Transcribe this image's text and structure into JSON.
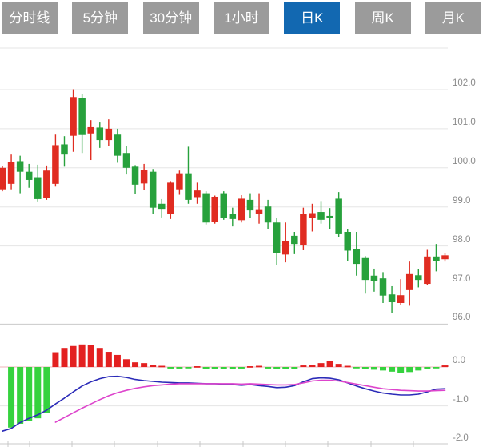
{
  "tab_bar": {
    "tabs": [
      {
        "id": "tab-time-share",
        "label": "分时线",
        "active": false
      },
      {
        "id": "tab-5min",
        "label": "5分钟",
        "active": false
      },
      {
        "id": "tab-30min",
        "label": "30分钟",
        "active": false
      },
      {
        "id": "tab-1hour",
        "label": "1小时",
        "active": false
      },
      {
        "id": "tab-daily-k",
        "label": "日K",
        "active": true
      },
      {
        "id": "tab-weekly-k",
        "label": "周K",
        "active": false
      },
      {
        "id": "tab-monthly-k",
        "label": "月K",
        "active": false
      }
    ],
    "active_bg": "#1268b1",
    "inactive_bg": "#9b9b9b",
    "text_color": "#ffffff"
  },
  "price_axis": {
    "labels": [
      "102.0",
      "101.0",
      "100.0",
      "99.0",
      "98.0",
      "97.0",
      "96.0"
    ],
    "values": [
      102,
      101,
      100,
      99,
      98,
      97,
      96
    ]
  },
  "macd_axis": {
    "labels": [
      "0.0",
      "-1.0",
      "-2.0"
    ],
    "values": [
      0,
      -1,
      -2
    ]
  },
  "chart_data": {
    "type": "candlestick",
    "title": "Daily K-line with MACD sub-chart",
    "selected_period": "日K",
    "panels": [
      "price-kline",
      "macd-histogram"
    ],
    "price_axis_range": [
      95.9,
      103.0
    ],
    "macd_axis_range": [
      -2.05,
      0.65
    ],
    "grid": true,
    "legend": "none",
    "candles_ohlc": [
      [
        99.45,
        100.05,
        99.4,
        100.0
      ],
      [
        99.59,
        100.34,
        99.45,
        100.15
      ],
      [
        100.17,
        100.31,
        99.35,
        99.9
      ],
      [
        99.9,
        100.1,
        99.49,
        99.69
      ],
      [
        99.76,
        100.08,
        99.14,
        99.2
      ],
      [
        99.22,
        100.06,
        99.18,
        99.93
      ],
      [
        99.59,
        100.85,
        99.52,
        100.58
      ],
      [
        100.6,
        100.81,
        100.03,
        100.34
      ],
      [
        100.82,
        102.01,
        100.41,
        101.81
      ],
      [
        101.78,
        101.88,
        100.38,
        100.84
      ],
      [
        100.88,
        101.22,
        100.2,
        101.04
      ],
      [
        101.03,
        101.16,
        100.51,
        100.71
      ],
      [
        100.71,
        101.24,
        100.55,
        101.0
      ],
      [
        100.85,
        101.0,
        100.13,
        100.31
      ],
      [
        100.38,
        100.56,
        99.83,
        100.0
      ],
      [
        100.03,
        100.07,
        99.33,
        99.57
      ],
      [
        99.6,
        100.1,
        99.44,
        99.94
      ],
      [
        99.9,
        99.97,
        98.81,
        98.98
      ],
      [
        99.08,
        99.2,
        98.73,
        98.95
      ],
      [
        98.81,
        99.66,
        98.69,
        99.62
      ],
      [
        99.45,
        99.93,
        99.31,
        99.86
      ],
      [
        99.86,
        100.54,
        99.08,
        99.18
      ],
      [
        99.25,
        99.62,
        99.08,
        99.42
      ],
      [
        99.35,
        99.4,
        98.55,
        98.6
      ],
      [
        98.61,
        99.29,
        98.57,
        99.26
      ],
      [
        99.35,
        99.4,
        98.67,
        98.71
      ],
      [
        98.81,
        98.98,
        98.5,
        98.69
      ],
      [
        98.66,
        99.3,
        98.6,
        99.21
      ],
      [
        99.18,
        99.35,
        98.71,
        98.91
      ],
      [
        98.83,
        99.35,
        98.57,
        98.94
      ],
      [
        99.01,
        99.18,
        98.43,
        98.6
      ],
      [
        98.6,
        98.71,
        97.51,
        97.82
      ],
      [
        97.78,
        98.6,
        97.58,
        98.12
      ],
      [
        98.26,
        98.36,
        97.79,
        98.05
      ],
      [
        98.02,
        98.98,
        97.89,
        98.81
      ],
      [
        98.71,
        99.08,
        98.37,
        98.84
      ],
      [
        98.87,
        99.15,
        98.57,
        98.67
      ],
      [
        98.77,
        98.97,
        98.43,
        98.71
      ],
      [
        99.21,
        99.38,
        98.23,
        98.3
      ],
      [
        98.36,
        98.43,
        97.62,
        97.88
      ],
      [
        97.92,
        98.36,
        97.24,
        97.54
      ],
      [
        97.69,
        97.74,
        96.78,
        97.13
      ],
      [
        97.24,
        97.42,
        96.83,
        97.1
      ],
      [
        97.17,
        97.33,
        96.54,
        96.73
      ],
      [
        96.76,
        96.97,
        96.28,
        96.56
      ],
      [
        96.54,
        97.15,
        96.49,
        96.74
      ],
      [
        96.87,
        97.6,
        96.47,
        97.28
      ],
      [
        97.25,
        97.4,
        96.94,
        97.13
      ],
      [
        97.03,
        97.9,
        96.99,
        97.73
      ],
      [
        97.73,
        98.05,
        97.35,
        97.62
      ],
      [
        97.66,
        97.82,
        97.6,
        97.76
      ]
    ],
    "macd": {
      "hist": [
        null,
        -1.56,
        -1.46,
        -1.38,
        -1.32,
        -1.19,
        0.38,
        0.49,
        0.54,
        0.58,
        0.56,
        0.49,
        0.39,
        0.31,
        0.2,
        0.12,
        0.1,
        0.05,
        0.03,
        -0.04,
        -0.04,
        -0.03,
        0.02,
        -0.05,
        -0.05,
        -0.06,
        -0.05,
        -0.04,
        0.02,
        0.03,
        -0.04,
        -0.05,
        -0.06,
        -0.05,
        0.04,
        0.06,
        0.1,
        0.15,
        0.08,
        0.03,
        -0.02,
        -0.05,
        -0.07,
        -0.09,
        -0.12,
        -0.15,
        -0.13,
        -0.09,
        -0.05,
        -0.03,
        0.04
      ],
      "dif": [
        -1.65,
        -1.58,
        -1.43,
        -1.32,
        -1.23,
        -1.11,
        -0.95,
        -0.8,
        -0.64,
        -0.49,
        -0.38,
        -0.3,
        -0.25,
        -0.24,
        -0.27,
        -0.32,
        -0.35,
        -0.37,
        -0.39,
        -0.4,
        -0.41,
        -0.41,
        -0.42,
        -0.43,
        -0.43,
        -0.44,
        -0.45,
        -0.47,
        -0.45,
        -0.48,
        -0.5,
        -0.53,
        -0.52,
        -0.48,
        -0.38,
        -0.3,
        -0.28,
        -0.29,
        -0.33,
        -0.41,
        -0.49,
        -0.56,
        -0.62,
        -0.67,
        -0.7,
        -0.72,
        -0.72,
        -0.7,
        -0.64,
        -0.57,
        -0.56
      ],
      "dea": [
        null,
        null,
        null,
        null,
        null,
        null,
        -1.42,
        -1.3,
        -1.18,
        -1.06,
        -0.95,
        -0.84,
        -0.74,
        -0.66,
        -0.6,
        -0.55,
        -0.51,
        -0.48,
        -0.46,
        -0.44,
        -0.43,
        -0.43,
        -0.43,
        -0.43,
        -0.43,
        -0.43,
        -0.43,
        -0.44,
        -0.43,
        -0.44,
        -0.45,
        -0.46,
        -0.46,
        -0.45,
        -0.41,
        -0.36,
        -0.34,
        -0.34,
        -0.36,
        -0.4,
        -0.44,
        -0.48,
        -0.52,
        -0.56,
        -0.58,
        -0.6,
        -0.61,
        -0.62,
        -0.62,
        -0.61,
        -0.6
      ]
    },
    "colors": {
      "up_candle": "#e02c21",
      "down_candle": "#27a13c",
      "hist_positive": "#e32020",
      "hist_negative": "#35d23e",
      "dif_line": "#2b2bb8",
      "dea_line": "#dd44cc",
      "zero_line": "#efb3ba",
      "grid_line": "#e5e5e5",
      "axis_line": "#c9c9c9",
      "label_text": "#8a8a8a"
    }
  }
}
